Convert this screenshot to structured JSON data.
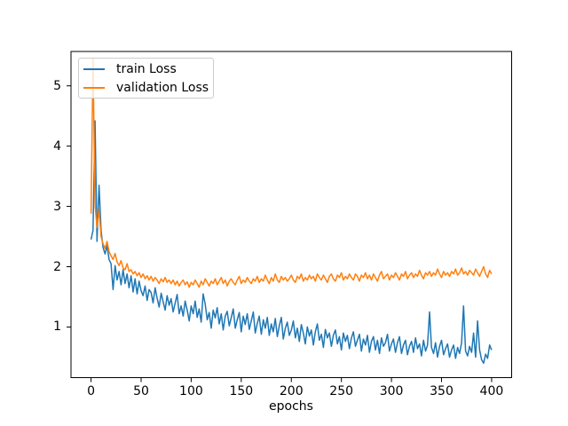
{
  "chart_data": {
    "type": "line",
    "title": "",
    "xlabel": "epochs",
    "ylabel": "",
    "xlim": [
      -20,
      420
    ],
    "ylim": [
      0.16,
      5.57
    ],
    "xticks": [
      0,
      50,
      100,
      150,
      200,
      250,
      300,
      350,
      400
    ],
    "yticks": [
      1,
      2,
      3,
      4,
      5
    ],
    "grid": false,
    "legend_position": "upper left",
    "x_start": 0,
    "x_step": 2,
    "series": [
      {
        "name": "train Loss",
        "color": "#1f77b4",
        "values": [
          2.45,
          2.6,
          4.42,
          2.42,
          3.35,
          2.6,
          2.32,
          2.21,
          2.35,
          2.12,
          2.05,
          1.62,
          2.02,
          1.78,
          1.92,
          1.7,
          1.95,
          1.72,
          1.88,
          1.65,
          1.85,
          1.58,
          1.8,
          1.55,
          1.76,
          1.6,
          1.52,
          1.68,
          1.44,
          1.62,
          1.57,
          1.4,
          1.65,
          1.48,
          1.33,
          1.56,
          1.42,
          1.28,
          1.52,
          1.36,
          1.47,
          1.25,
          1.4,
          1.54,
          1.22,
          1.35,
          1.18,
          1.43,
          1.28,
          1.1,
          1.35,
          1.22,
          1.43,
          1.16,
          1.3,
          1.08,
          1.55,
          1.38,
          1.12,
          1.24,
          0.98,
          1.28,
          1.15,
          1.32,
          1.05,
          1.22,
          0.95,
          1.18,
          1.26,
          1.02,
          1.15,
          1.3,
          0.98,
          1.12,
          1.24,
          0.92,
          1.18,
          1.04,
          1.22,
          0.96,
          1.1,
          1.25,
          0.9,
          1.06,
          1.18,
          0.88,
          1.12,
          0.98,
          1.16,
          0.86,
          1.05,
          0.92,
          1.14,
          0.84,
          1.02,
          1.16,
          0.8,
          0.98,
          1.08,
          0.86,
          0.95,
          1.1,
          0.82,
          0.98,
          0.76,
          1.04,
          0.9,
          0.72,
          1.0,
          0.85,
          0.95,
          0.7,
          0.92,
          1.05,
          0.78,
          0.88,
          0.66,
          0.96,
          0.82,
          0.9,
          0.68,
          0.86,
          0.95,
          0.72,
          0.84,
          0.62,
          0.9,
          0.76,
          0.86,
          0.64,
          0.82,
          0.92,
          0.68,
          0.78,
          0.88,
          0.6,
          0.8,
          0.7,
          0.86,
          0.58,
          0.76,
          0.84,
          0.62,
          0.78,
          0.56,
          0.82,
          0.68,
          0.74,
          0.88,
          0.6,
          0.72,
          0.8,
          0.58,
          0.74,
          0.84,
          0.56,
          0.7,
          0.78,
          0.54,
          0.68,
          0.76,
          0.58,
          0.82,
          0.64,
          0.72,
          0.52,
          0.78,
          0.6,
          0.7,
          1.25,
          0.66,
          0.56,
          0.74,
          0.5,
          0.68,
          0.78,
          0.54,
          0.64,
          0.72,
          0.5,
          0.62,
          0.7,
          0.48,
          0.66,
          0.56,
          0.74,
          1.35,
          0.6,
          0.52,
          0.68,
          0.58,
          0.9,
          0.5,
          1.1,
          0.62,
          0.46,
          0.4,
          0.55,
          0.48,
          0.7,
          0.62
        ]
      },
      {
        "name": "validation Loss",
        "color": "#ff7f0e",
        "values": [
          2.88,
          5.45,
          3.02,
          2.65,
          2.95,
          2.5,
          2.38,
          2.3,
          2.42,
          2.25,
          2.18,
          2.12,
          2.22,
          2.08,
          2.02,
          2.1,
          1.98,
          1.95,
          2.05,
          1.92,
          1.95,
          1.88,
          1.92,
          1.85,
          1.9,
          1.82,
          1.88,
          1.8,
          1.85,
          1.78,
          1.84,
          1.76,
          1.82,
          1.78,
          1.72,
          1.8,
          1.75,
          1.82,
          1.74,
          1.78,
          1.72,
          1.78,
          1.7,
          1.76,
          1.68,
          1.74,
          1.78,
          1.7,
          1.75,
          1.66,
          1.74,
          1.7,
          1.78,
          1.72,
          1.66,
          1.76,
          1.7,
          1.8,
          1.74,
          1.68,
          1.76,
          1.72,
          1.8,
          1.7,
          1.76,
          1.82,
          1.72,
          1.78,
          1.68,
          1.76,
          1.8,
          1.74,
          1.7,
          1.78,
          1.84,
          1.72,
          1.78,
          1.74,
          1.82,
          1.76,
          1.72,
          1.8,
          1.76,
          1.84,
          1.74,
          1.8,
          1.76,
          1.86,
          1.78,
          1.72,
          1.82,
          1.76,
          1.88,
          1.78,
          1.74,
          1.84,
          1.78,
          1.82,
          1.76,
          1.8,
          1.86,
          1.78,
          1.74,
          1.84,
          1.8,
          1.88,
          1.76,
          1.82,
          1.78,
          1.86,
          1.8,
          1.84,
          1.76,
          1.88,
          1.82,
          1.78,
          1.86,
          1.8,
          1.74,
          1.84,
          1.88,
          1.8,
          1.76,
          1.86,
          1.82,
          1.9,
          1.78,
          1.84,
          1.8,
          1.88,
          1.82,
          1.78,
          1.88,
          1.84,
          1.76,
          1.86,
          1.82,
          1.9,
          1.8,
          1.86,
          1.78,
          1.88,
          1.82,
          1.76,
          1.86,
          1.92,
          1.8,
          1.84,
          1.88,
          1.78,
          1.86,
          1.82,
          1.9,
          1.84,
          1.78,
          1.88,
          1.84,
          1.92,
          1.8,
          1.86,
          1.9,
          1.82,
          1.88,
          1.84,
          1.94,
          1.86,
          1.8,
          1.9,
          1.86,
          1.92,
          1.84,
          1.9,
          1.86,
          1.96,
          1.88,
          1.82,
          1.92,
          1.86,
          1.9,
          1.84,
          1.92,
          1.88,
          1.96,
          1.86,
          1.9,
          1.98,
          1.88,
          1.92,
          1.86,
          1.94,
          1.9,
          1.86,
          1.96,
          1.9,
          1.84,
          1.92,
          2.0,
          1.88,
          1.82,
          1.94,
          1.88
        ]
      }
    ]
  }
}
